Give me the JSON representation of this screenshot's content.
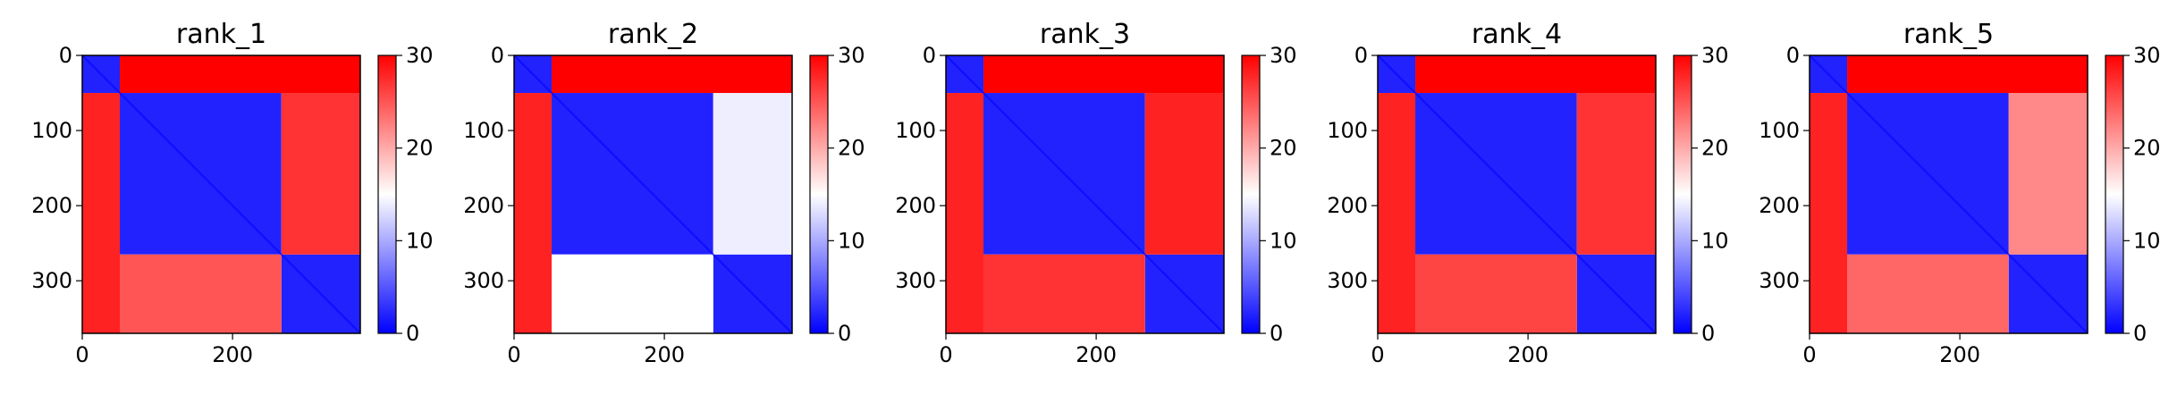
{
  "chart_data": [
    {
      "type": "heatmap",
      "title": "rank_1",
      "xticks": [
        0,
        200
      ],
      "yticks": [
        0,
        100,
        200,
        300
      ],
      "xlim": [
        0,
        370
      ],
      "ylim": [
        370,
        0
      ],
      "colorbar": {
        "ticks": [
          0,
          10,
          20,
          30
        ],
        "range": [
          0,
          30
        ],
        "colormap": "bwr"
      },
      "matrix_blocks": [
        {
          "rows": [
            0,
            50
          ],
          "cols": [
            0,
            50
          ],
          "value": 2,
          "note": "diagonal band"
        },
        {
          "rows": [
            50,
            265
          ],
          "cols": [
            50,
            265
          ],
          "value": 2
        },
        {
          "rows": [
            265,
            370
          ],
          "cols": [
            265,
            370
          ],
          "value": 2
        },
        {
          "rows": [
            265,
            370
          ],
          "cols": [
            50,
            265
          ],
          "value": 25
        },
        {
          "rows": [
            50,
            265
          ],
          "cols": [
            265,
            370
          ],
          "value": 27
        },
        {
          "rows": [
            0,
            50
          ],
          "cols": [
            50,
            370
          ],
          "value": 30
        },
        {
          "rows": [
            50,
            370
          ],
          "cols": [
            0,
            50
          ],
          "value": 28
        }
      ]
    },
    {
      "type": "heatmap",
      "title": "rank_2",
      "xticks": [
        0,
        200
      ],
      "yticks": [
        0,
        100,
        200,
        300
      ],
      "xlim": [
        0,
        370
      ],
      "ylim": [
        370,
        0
      ],
      "colorbar": {
        "ticks": [
          0,
          10,
          20,
          30
        ],
        "range": [
          0,
          30
        ],
        "colormap": "bwr"
      },
      "matrix_blocks": [
        {
          "rows": [
            0,
            50
          ],
          "cols": [
            0,
            50
          ],
          "value": 2
        },
        {
          "rows": [
            50,
            265
          ],
          "cols": [
            50,
            265
          ],
          "value": 2
        },
        {
          "rows": [
            265,
            370
          ],
          "cols": [
            265,
            370
          ],
          "value": 2
        },
        {
          "rows": [
            265,
            370
          ],
          "cols": [
            50,
            265
          ],
          "value": 15
        },
        {
          "rows": [
            50,
            265
          ],
          "cols": [
            265,
            370
          ],
          "value": 14
        },
        {
          "rows": [
            0,
            50
          ],
          "cols": [
            50,
            370
          ],
          "value": 30
        },
        {
          "rows": [
            50,
            370
          ],
          "cols": [
            0,
            50
          ],
          "value": 28
        }
      ]
    },
    {
      "type": "heatmap",
      "title": "rank_3",
      "xticks": [
        0,
        200
      ],
      "yticks": [
        0,
        100,
        200,
        300
      ],
      "xlim": [
        0,
        370
      ],
      "ylim": [
        370,
        0
      ],
      "colorbar": {
        "ticks": [
          0,
          10,
          20,
          30
        ],
        "range": [
          0,
          30
        ],
        "colormap": "bwr"
      },
      "matrix_blocks": [
        {
          "rows": [
            0,
            50
          ],
          "cols": [
            0,
            50
          ],
          "value": 2
        },
        {
          "rows": [
            50,
            265
          ],
          "cols": [
            50,
            265
          ],
          "value": 2
        },
        {
          "rows": [
            265,
            370
          ],
          "cols": [
            265,
            370
          ],
          "value": 2
        },
        {
          "rows": [
            265,
            370
          ],
          "cols": [
            50,
            265
          ],
          "value": 27
        },
        {
          "rows": [
            50,
            265
          ],
          "cols": [
            265,
            370
          ],
          "value": 28
        },
        {
          "rows": [
            0,
            50
          ],
          "cols": [
            50,
            370
          ],
          "value": 30
        },
        {
          "rows": [
            50,
            370
          ],
          "cols": [
            0,
            50
          ],
          "value": 28
        }
      ]
    },
    {
      "type": "heatmap",
      "title": "rank_4",
      "xticks": [
        0,
        200
      ],
      "yticks": [
        0,
        100,
        200,
        300
      ],
      "xlim": [
        0,
        370
      ],
      "ylim": [
        370,
        0
      ],
      "colorbar": {
        "ticks": [
          0,
          10,
          20,
          30
        ],
        "range": [
          0,
          30
        ],
        "colormap": "bwr"
      },
      "matrix_blocks": [
        {
          "rows": [
            0,
            50
          ],
          "cols": [
            0,
            50
          ],
          "value": 2
        },
        {
          "rows": [
            50,
            265
          ],
          "cols": [
            50,
            265
          ],
          "value": 2
        },
        {
          "rows": [
            265,
            370
          ],
          "cols": [
            265,
            370
          ],
          "value": 2
        },
        {
          "rows": [
            265,
            370
          ],
          "cols": [
            50,
            265
          ],
          "value": 26
        },
        {
          "rows": [
            50,
            265
          ],
          "cols": [
            265,
            370
          ],
          "value": 27
        },
        {
          "rows": [
            0,
            50
          ],
          "cols": [
            50,
            370
          ],
          "value": 30
        },
        {
          "rows": [
            50,
            370
          ],
          "cols": [
            0,
            50
          ],
          "value": 28
        }
      ]
    },
    {
      "type": "heatmap",
      "title": "rank_5",
      "xticks": [
        0,
        200
      ],
      "yticks": [
        0,
        100,
        200,
        300
      ],
      "xlim": [
        0,
        370
      ],
      "ylim": [
        370,
        0
      ],
      "colorbar": {
        "ticks": [
          0,
          10,
          20,
          30
        ],
        "range": [
          0,
          30
        ],
        "colormap": "bwr"
      },
      "matrix_blocks": [
        {
          "rows": [
            0,
            50
          ],
          "cols": [
            0,
            50
          ],
          "value": 2
        },
        {
          "rows": [
            50,
            265
          ],
          "cols": [
            50,
            265
          ],
          "value": 2
        },
        {
          "rows": [
            265,
            370
          ],
          "cols": [
            265,
            370
          ],
          "value": 2
        },
        {
          "rows": [
            265,
            370
          ],
          "cols": [
            50,
            265
          ],
          "value": 24
        },
        {
          "rows": [
            50,
            265
          ],
          "cols": [
            265,
            370
          ],
          "value": 22
        },
        {
          "rows": [
            0,
            50
          ],
          "cols": [
            50,
            370
          ],
          "value": 30
        },
        {
          "rows": [
            50,
            370
          ],
          "cols": [
            0,
            50
          ],
          "value": 28
        }
      ]
    }
  ]
}
